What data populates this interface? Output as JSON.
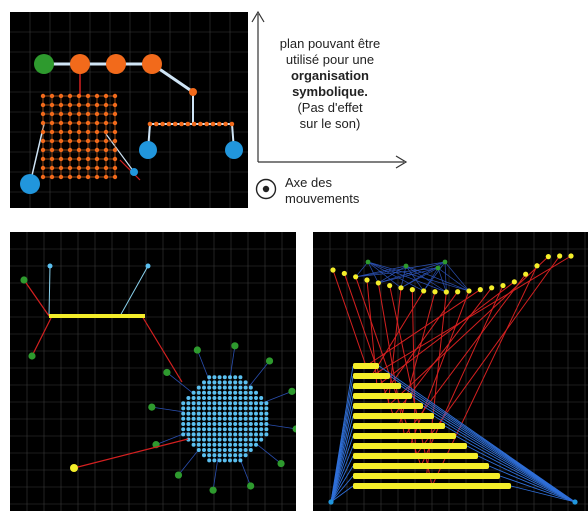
{
  "note": {
    "line1": "plan pouvant être",
    "line2": "utilisé pour une",
    "line3": "organisation",
    "line4": "symbolique.",
    "line5": "(Pas d'effet",
    "line6": "sur le son)"
  },
  "axis_legend": {
    "line1": "Axe des",
    "line2": "mouvements"
  },
  "colors": {
    "orange": "#f26a1b",
    "green": "#2e9a2e",
    "blue": "#2196dc",
    "yellow": "#f4ee2a",
    "red": "#d42020",
    "light_blue": "#5bc0f0",
    "grid": "#3a3a3a"
  }
}
